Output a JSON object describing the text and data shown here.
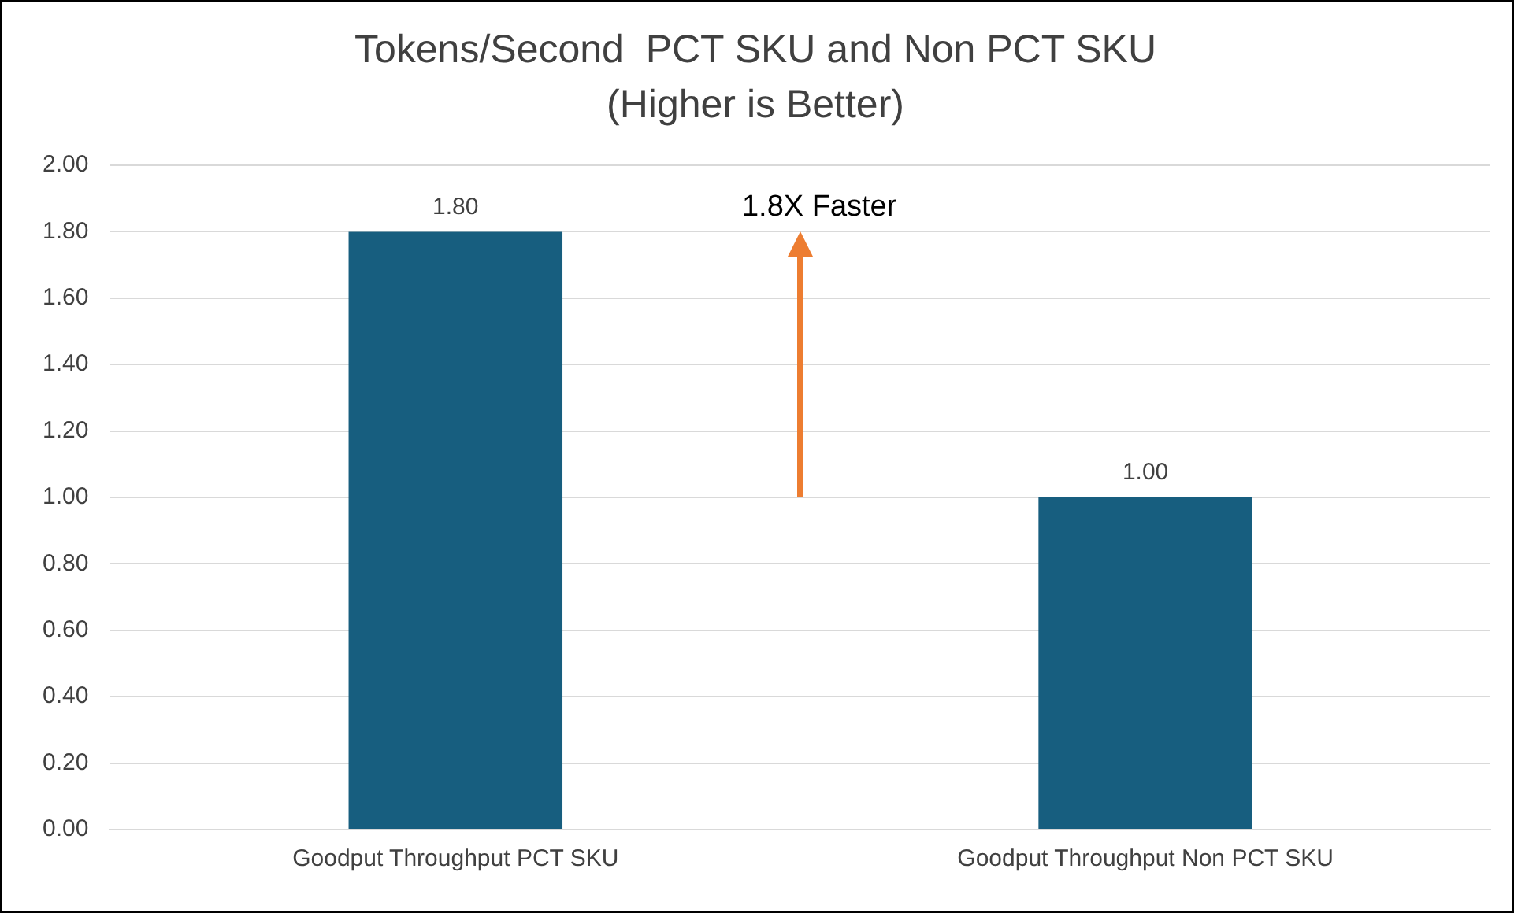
{
  "chart_data": {
    "type": "bar",
    "title": [
      "Tokens/Second  PCT SKU and Non PCT SKU",
      "(Higher is Better)"
    ],
    "categories": [
      "Goodput Throughput PCT SKU",
      "Goodput Throughput Non PCT SKU"
    ],
    "values": [
      1.8,
      1.0
    ],
    "color": "#175e7f",
    "value_labels": [
      "1.80",
      "1.00"
    ],
    "ylim": [
      0,
      2
    ],
    "yticks": [
      {
        "value": 0,
        "label": "0.00"
      },
      {
        "value": 0.2,
        "label": "0.20"
      },
      {
        "value": 0.4,
        "label": "0.40"
      },
      {
        "value": 0.6,
        "label": "0.60"
      },
      {
        "value": 0.8,
        "label": "0.80"
      },
      {
        "value": 1,
        "label": "1.00"
      },
      {
        "value": 1.2,
        "label": "1.20"
      },
      {
        "value": 1.4,
        "label": "1.40"
      },
      {
        "value": 1.6,
        "label": "1.60"
      },
      {
        "value": 1.8,
        "label": "1.80"
      },
      {
        "value": 2,
        "label": "2.00"
      }
    ],
    "grid": "y",
    "legend": false,
    "annotations": [
      "1.8X Faster"
    ]
  }
}
